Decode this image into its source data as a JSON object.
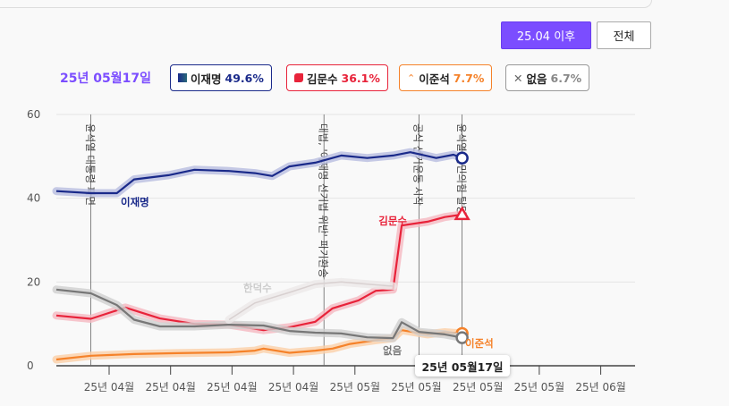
{
  "controls": {
    "since_label": "25.04 이후",
    "all_label": "전체"
  },
  "selected_date": "25년 05월17일",
  "legend": [
    {
      "name": "이재명",
      "value": "49.6%",
      "color": "#1a2a8a",
      "icon": "square-icon"
    },
    {
      "name": "김문수",
      "value": "36.1%",
      "color": "#e8233a",
      "icon": "party-shape-icon"
    },
    {
      "name": "이준석",
      "value": "7.7%",
      "color": "#f5822a",
      "icon": "caret-up-icon"
    },
    {
      "name": "없음",
      "value": "6.7%",
      "color": "#888888",
      "icon": "x-icon"
    }
  ],
  "chart_data": {
    "type": "line",
    "ylim": [
      0,
      60
    ],
    "yticks": [
      "0",
      "20",
      "40",
      "60"
    ],
    "grid": true,
    "xticks": [
      "25년 04월",
      "25년 04월",
      "25년 04월",
      "25년 04월",
      "25년 05월",
      "25년 05월",
      "25년 05월",
      "25년 05월",
      "25년 06월"
    ],
    "xrange": [
      "2025-03-31",
      "2025-06-05"
    ],
    "events": [
      {
        "date": "2025-04-04",
        "label": "윤석열 대통령 파면"
      },
      {
        "date": "2025-05-01",
        "label": "대법, '이재명 선거법 위반' 파기환송"
      },
      {
        "date": "2025-05-12",
        "label": "공식 선거운동 시작"
      },
      {
        "date": "2025-05-17",
        "label": "윤석열 국민의힘 탈당"
      }
    ],
    "series": [
      {
        "name": "이재명",
        "color": "#1a2a8a",
        "band": "#b8bde0",
        "marker": "circle",
        "x": [
          "2025-03-31",
          "2025-04-04",
          "2025-04-07",
          "2025-04-09",
          "2025-04-13",
          "2025-04-16",
          "2025-04-20",
          "2025-04-23",
          "2025-04-25",
          "2025-04-27",
          "2025-04-30",
          "2025-05-03",
          "2025-05-06",
          "2025-05-09",
          "2025-05-11",
          "2025-05-14",
          "2025-05-16",
          "2025-05-17"
        ],
        "y": [
          41.7,
          41.2,
          41.2,
          44.5,
          45.5,
          46.8,
          46.5,
          46.0,
          45.3,
          47.6,
          48.5,
          50.2,
          49.6,
          50.2,
          51.0,
          49.6,
          50.4,
          49.6
        ]
      },
      {
        "name": "김문수",
        "color": "#e8233a",
        "band": "#f5b8c0",
        "marker": "triangle",
        "x": [
          "2025-03-31",
          "2025-04-04",
          "2025-04-08",
          "2025-04-12",
          "2025-04-16",
          "2025-04-20",
          "2025-04-24",
          "2025-04-27",
          "2025-04-30",
          "2025-05-02",
          "2025-05-05",
          "2025-05-07",
          "2025-05-09",
          "2025-05-10",
          "2025-05-13",
          "2025-05-15",
          "2025-05-17"
        ],
        "y": [
          12.0,
          11.2,
          13.9,
          11.3,
          10.0,
          9.8,
          8.5,
          9.2,
          10.5,
          13.7,
          15.6,
          17.9,
          18.2,
          33.5,
          34.4,
          35.5,
          36.1
        ]
      },
      {
        "name": "이준석",
        "color": "#f5822a",
        "band": "#fbcfa8",
        "marker": "circle",
        "x": [
          "2025-03-31",
          "2025-04-04",
          "2025-04-09",
          "2025-04-14",
          "2025-04-20",
          "2025-04-23",
          "2025-04-24",
          "2025-04-27",
          "2025-04-30",
          "2025-05-02",
          "2025-05-04",
          "2025-05-07",
          "2025-05-09",
          "2025-05-10",
          "2025-05-13",
          "2025-05-15",
          "2025-05-17"
        ],
        "y": [
          1.5,
          2.4,
          2.8,
          3.0,
          3.2,
          3.6,
          4.1,
          3.1,
          3.6,
          4.1,
          5.2,
          6.1,
          6.6,
          8.5,
          7.5,
          8.0,
          7.7
        ]
      },
      {
        "name": "없음",
        "color": "#777777",
        "band": "#cfcfcf",
        "marker": "circle",
        "x": [
          "2025-03-31",
          "2025-04-04",
          "2025-04-07",
          "2025-04-09",
          "2025-04-12",
          "2025-04-16",
          "2025-04-20",
          "2025-04-24",
          "2025-04-27",
          "2025-04-30",
          "2025-05-03",
          "2025-05-06",
          "2025-05-09",
          "2025-05-10",
          "2025-05-12",
          "2025-05-15",
          "2025-05-17"
        ],
        "y": [
          18.2,
          17.3,
          14.5,
          11.0,
          9.4,
          9.4,
          9.8,
          9.6,
          8.3,
          7.9,
          7.7,
          6.8,
          6.6,
          10.4,
          8.1,
          7.5,
          6.7
        ]
      },
      {
        "name": "한덕수",
        "color": "#d8d0d0",
        "band": "#ece8e8",
        "marker": "none",
        "x": [
          "2025-04-20",
          "2025-04-23",
          "2025-04-27",
          "2025-04-30",
          "2025-05-03",
          "2025-05-06",
          "2025-05-09"
        ],
        "y": [
          11.0,
          15.0,
          17.5,
          19.5,
          20.0,
          19.5,
          19.0
        ]
      }
    ],
    "annotations": [
      {
        "text": "이재명",
        "series": "이재명"
      },
      {
        "text": "김문수",
        "series": "김문수"
      },
      {
        "text": "이준석",
        "series": "이준석"
      },
      {
        "text": "없음",
        "series": "없음"
      },
      {
        "text": "한덕수",
        "series": "한덕수"
      }
    ]
  }
}
